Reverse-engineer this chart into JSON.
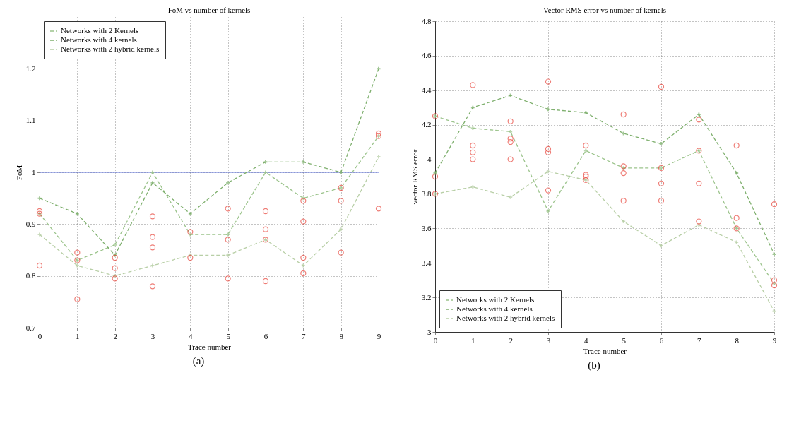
{
  "chart_data": [
    {
      "type": "line",
      "title": "FoM vs number of kernels",
      "xlabel": "Trace number",
      "ylabel": "FoM",
      "annotations": [
        "(a)"
      ],
      "x": [
        0,
        1,
        2,
        3,
        4,
        5,
        6,
        7,
        8,
        9
      ],
      "xlim": [
        0,
        9
      ],
      "xticks": [
        0,
        1,
        2,
        3,
        4,
        5,
        6,
        7,
        8,
        9
      ],
      "ylim": [
        0.7,
        1.3
      ],
      "yticks": [
        0.7,
        0.8,
        0.9,
        1,
        1.1,
        1.2
      ],
      "grid": true,
      "legend": "top left",
      "marker": "cross",
      "line_style": "dashed",
      "series": [
        {
          "name": "Networks with 2 Kernels",
          "color": "#9cc48c",
          "values": [
            0.92,
            0.83,
            0.86,
            1.0,
            0.88,
            0.88,
            1.0,
            0.95,
            0.97,
            1.07
          ]
        },
        {
          "name": "Networks with 4 kernels",
          "color": "#7fb06e",
          "values": [
            0.95,
            0.92,
            0.84,
            0.98,
            0.92,
            0.98,
            1.02,
            1.02,
            1.0,
            1.2
          ]
        },
        {
          "name": "Networks with 2 hybrid kernels",
          "color": "#b8cfa6",
          "values": [
            0.88,
            0.82,
            0.8,
            0.82,
            0.84,
            0.84,
            0.87,
            0.82,
            0.89,
            1.03
          ]
        },
        {
          "type": "scatter",
          "color": "#e8463c",
          "x": [
            0,
            0,
            0,
            1,
            1,
            1,
            2,
            2,
            2,
            3,
            3,
            3,
            3,
            4,
            4,
            5,
            5,
            5,
            6,
            6,
            6,
            6,
            7,
            7,
            7,
            7,
            8,
            8,
            8,
            9,
            9,
            9
          ],
          "values": [
            0.82,
            0.92,
            0.925,
            0.755,
            0.83,
            0.845,
            0.795,
            0.815,
            0.835,
            0.78,
            0.855,
            0.875,
            0.915,
            0.835,
            0.885,
            0.795,
            0.87,
            0.93,
            0.79,
            0.87,
            0.89,
            0.925,
            0.805,
            0.835,
            0.905,
            0.945,
            0.845,
            0.945,
            0.97,
            0.93,
            1.07,
            1.075
          ]
        }
      ],
      "ref_lines": [
        {
          "axis": "y",
          "value": 1,
          "color": "#5b6fd8"
        }
      ]
    },
    {
      "type": "line",
      "title": "Vector RMS error vs number of kernels",
      "xlabel": "Trace number",
      "ylabel": "vector RMS error",
      "annotations": [
        "(b)"
      ],
      "x": [
        0,
        1,
        2,
        3,
        4,
        5,
        6,
        7,
        8,
        9
      ],
      "xlim": [
        0,
        9
      ],
      "xticks": [
        0,
        1,
        2,
        3,
        4,
        5,
        6,
        7,
        8,
        9
      ],
      "ylim": [
        3,
        4.8
      ],
      "yticks": [
        3,
        3.2,
        3.4,
        3.6,
        3.8,
        4,
        4.2,
        4.4,
        4.6,
        4.8
      ],
      "grid": true,
      "legend": "bottom left",
      "marker": "cross",
      "line_style": "dashed",
      "series": [
        {
          "name": "Networks with 2 Kernels",
          "color": "#9cc48c",
          "values": [
            4.25,
            4.18,
            4.16,
            3.7,
            4.05,
            3.95,
            3.95,
            4.05,
            3.6,
            3.28
          ]
        },
        {
          "name": "Networks with 4 kernels",
          "color": "#7fb06e",
          "values": [
            3.92,
            4.3,
            4.37,
            4.29,
            4.27,
            4.15,
            4.09,
            4.26,
            3.92,
            3.45
          ]
        },
        {
          "name": "Networks with 2 hybrid kernels",
          "color": "#b8cfa6",
          "values": [
            3.8,
            3.84,
            3.78,
            3.93,
            3.88,
            3.64,
            3.5,
            3.62,
            3.52,
            3.12
          ]
        },
        {
          "type": "scatter",
          "color": "#e8463c",
          "x": [
            0,
            0,
            0,
            1,
            1,
            1,
            1,
            2,
            2,
            2,
            2,
            3,
            3,
            3,
            3,
            4,
            4,
            4,
            4,
            5,
            5,
            5,
            5,
            6,
            6,
            6,
            6,
            7,
            7,
            7,
            7,
            8,
            8,
            8,
            9,
            9,
            9
          ],
          "values": [
            3.8,
            3.9,
            4.25,
            4.0,
            4.04,
            4.08,
            4.43,
            4.0,
            4.1,
            4.12,
            4.22,
            3.82,
            4.04,
            4.06,
            4.45,
            3.88,
            3.9,
            3.91,
            4.08,
            3.76,
            3.92,
            3.96,
            4.26,
            3.76,
            3.86,
            3.95,
            4.42,
            3.64,
            3.86,
            4.05,
            4.23,
            3.6,
            3.66,
            4.08,
            3.27,
            3.3,
            3.74
          ]
        }
      ]
    }
  ]
}
